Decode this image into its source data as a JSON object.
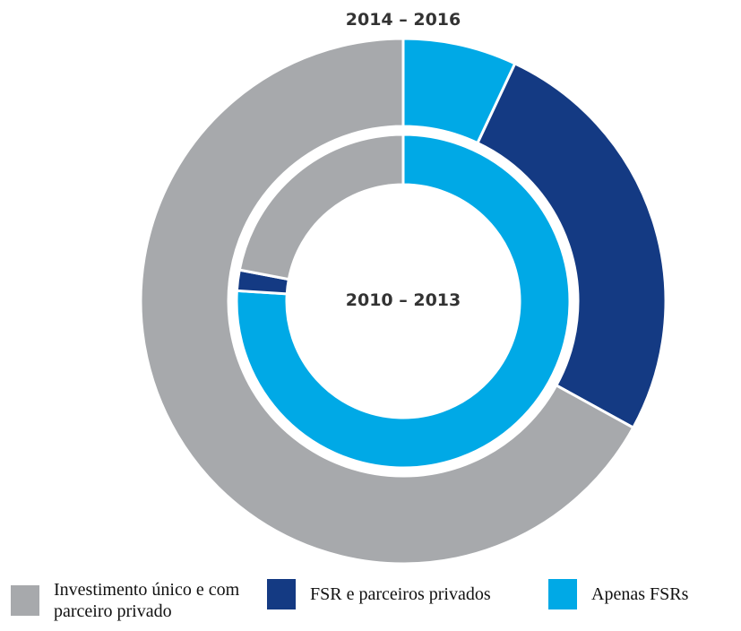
{
  "chart_data": {
    "type": "donut",
    "categories": [
      "Investimento único e com parceiro privado",
      "FSR e parceiros privados",
      "Apenas FSRs"
    ],
    "colors": [
      "#a7a9ac",
      "#143a83",
      "#00a9e6"
    ],
    "series": [
      {
        "name": "2014 – 2016",
        "values": [
          67,
          26,
          7
        ]
      },
      {
        "name": "2010 – 2013",
        "values": [
          22,
          2,
          76
        ]
      }
    ]
  }
}
